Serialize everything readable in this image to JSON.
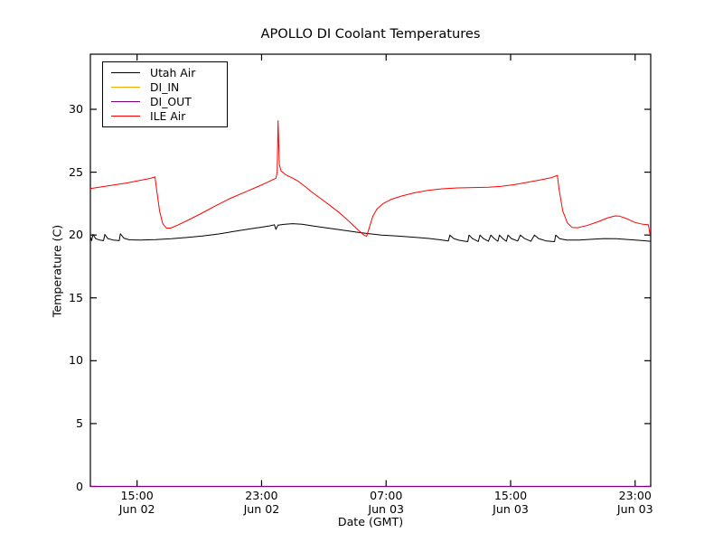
{
  "chart_data": {
    "type": "line",
    "title": "APOLLO DI Coolant Temperatures",
    "xlabel": "Date (GMT)",
    "ylabel": "Temperature (C)",
    "grid": false,
    "legend_position": "upper left",
    "background_color": "#ffffff",
    "axis_color": "#000000",
    "ylim": [
      0,
      30
    ],
    "yticks": [
      0,
      5,
      10,
      15,
      20,
      25,
      30
    ],
    "x_unit": "hours since Jun 02 12:00 GMT",
    "xlim": [
      0,
      36
    ],
    "xticks": [
      {
        "h": 3,
        "time": "15:00",
        "date": "Jun 02"
      },
      {
        "h": 11,
        "time": "23:00",
        "date": "Jun 02"
      },
      {
        "h": 19,
        "time": "07:00",
        "date": "Jun 03"
      },
      {
        "h": 27,
        "time": "15:00",
        "date": "Jun 03"
      },
      {
        "h": 35,
        "time": "23:00",
        "date": "Jun 03"
      }
    ],
    "series": [
      {
        "name": "Utah Air",
        "color": "#000000",
        "points": [
          [
            0,
            19.85
          ],
          [
            0.08,
            19.55
          ],
          [
            0.17,
            20.05
          ],
          [
            0.35,
            19.7
          ],
          [
            0.6,
            19.6
          ],
          [
            0.85,
            19.55
          ],
          [
            0.93,
            20.05
          ],
          [
            1.12,
            19.72
          ],
          [
            1.45,
            19.6
          ],
          [
            1.85,
            19.55
          ],
          [
            1.93,
            20.1
          ],
          [
            2.15,
            19.75
          ],
          [
            2.5,
            19.62
          ],
          [
            3.2,
            19.6
          ],
          [
            4.2,
            19.63
          ],
          [
            5.2,
            19.7
          ],
          [
            6.2,
            19.8
          ],
          [
            7.2,
            19.92
          ],
          [
            8.2,
            20.08
          ],
          [
            9.2,
            20.28
          ],
          [
            10.2,
            20.48
          ],
          [
            10.9,
            20.6
          ],
          [
            11.5,
            20.72
          ],
          [
            11.82,
            20.82
          ],
          [
            11.92,
            20.45
          ],
          [
            12.05,
            20.78
          ],
          [
            12.5,
            20.85
          ],
          [
            13.0,
            20.9
          ],
          [
            13.6,
            20.85
          ],
          [
            14.3,
            20.72
          ],
          [
            15.1,
            20.58
          ],
          [
            16.0,
            20.42
          ],
          [
            17.0,
            20.25
          ],
          [
            17.8,
            20.12
          ],
          [
            18.7,
            20.0
          ],
          [
            19.7,
            19.92
          ],
          [
            20.7,
            19.83
          ],
          [
            21.7,
            19.73
          ],
          [
            22.5,
            19.62
          ],
          [
            23.0,
            19.52
          ],
          [
            23.1,
            20.0
          ],
          [
            23.35,
            19.72
          ],
          [
            23.7,
            19.58
          ],
          [
            24.1,
            19.5
          ],
          [
            24.25,
            19.47
          ],
          [
            24.33,
            20.0
          ],
          [
            24.55,
            19.72
          ],
          [
            24.92,
            19.48
          ],
          [
            25.03,
            20.0
          ],
          [
            25.25,
            19.72
          ],
          [
            25.58,
            19.5
          ],
          [
            25.73,
            20.0
          ],
          [
            25.95,
            19.72
          ],
          [
            26.18,
            19.5
          ],
          [
            26.28,
            20.0
          ],
          [
            26.5,
            19.72
          ],
          [
            26.73,
            19.5
          ],
          [
            26.83,
            20.0
          ],
          [
            27.05,
            19.72
          ],
          [
            27.45,
            19.52
          ],
          [
            27.63,
            20.0
          ],
          [
            27.9,
            19.72
          ],
          [
            28.3,
            19.5
          ],
          [
            28.53,
            20.0
          ],
          [
            28.8,
            19.72
          ],
          [
            29.3,
            19.52
          ],
          [
            29.82,
            19.47
          ],
          [
            29.9,
            20.0
          ],
          [
            30.15,
            19.7
          ],
          [
            30.6,
            19.6
          ],
          [
            31.4,
            19.6
          ],
          [
            32.2,
            19.66
          ],
          [
            33.0,
            19.72
          ],
          [
            33.8,
            19.7
          ],
          [
            34.6,
            19.63
          ],
          [
            35.4,
            19.56
          ],
          [
            36,
            19.5
          ]
        ]
      },
      {
        "name": "DI_IN",
        "color": "#ffa500",
        "points": [
          [
            0,
            0
          ],
          [
            36,
            0
          ]
        ]
      },
      {
        "name": "DI_OUT",
        "color": "#800080",
        "points": [
          [
            0,
            0
          ],
          [
            36,
            0
          ]
        ]
      },
      {
        "name": "ILE Air",
        "color": "#ff0000",
        "points": [
          [
            0,
            23.7
          ],
          [
            0.8,
            23.85
          ],
          [
            1.6,
            24.0
          ],
          [
            2.4,
            24.15
          ],
          [
            3.2,
            24.35
          ],
          [
            3.85,
            24.5
          ],
          [
            4.15,
            24.62
          ],
          [
            4.28,
            23.4
          ],
          [
            4.45,
            21.9
          ],
          [
            4.65,
            20.9
          ],
          [
            4.88,
            20.55
          ],
          [
            5.15,
            20.55
          ],
          [
            5.6,
            20.78
          ],
          [
            6.3,
            21.2
          ],
          [
            7.1,
            21.7
          ],
          [
            8.0,
            22.3
          ],
          [
            9.0,
            22.92
          ],
          [
            10.0,
            23.45
          ],
          [
            10.7,
            23.82
          ],
          [
            11.3,
            24.15
          ],
          [
            11.72,
            24.4
          ],
          [
            11.92,
            24.52
          ],
          [
            12.0,
            25.0
          ],
          [
            12.06,
            29.1
          ],
          [
            12.14,
            25.6
          ],
          [
            12.25,
            25.1
          ],
          [
            12.55,
            24.8
          ],
          [
            12.95,
            24.55
          ],
          [
            13.35,
            24.28
          ],
          [
            13.75,
            23.9
          ],
          [
            14.25,
            23.4
          ],
          [
            14.85,
            22.85
          ],
          [
            15.45,
            22.3
          ],
          [
            16.05,
            21.72
          ],
          [
            16.65,
            21.05
          ],
          [
            17.15,
            20.45
          ],
          [
            17.55,
            20.02
          ],
          [
            17.75,
            19.9
          ],
          [
            17.95,
            20.7
          ],
          [
            18.15,
            21.5
          ],
          [
            18.4,
            22.05
          ],
          [
            18.8,
            22.5
          ],
          [
            19.3,
            22.82
          ],
          [
            20.0,
            23.1
          ],
          [
            20.8,
            23.35
          ],
          [
            21.7,
            23.55
          ],
          [
            22.6,
            23.68
          ],
          [
            23.6,
            23.75
          ],
          [
            24.6,
            23.78
          ],
          [
            25.6,
            23.8
          ],
          [
            26.4,
            23.87
          ],
          [
            27.2,
            24.0
          ],
          [
            28.1,
            24.2
          ],
          [
            29.0,
            24.4
          ],
          [
            29.6,
            24.55
          ],
          [
            30.0,
            24.75
          ],
          [
            30.12,
            23.6
          ],
          [
            30.35,
            21.9
          ],
          [
            30.65,
            20.95
          ],
          [
            30.95,
            20.6
          ],
          [
            31.3,
            20.58
          ],
          [
            31.9,
            20.75
          ],
          [
            32.6,
            21.05
          ],
          [
            33.2,
            21.35
          ],
          [
            33.7,
            21.52
          ],
          [
            34.0,
            21.5
          ],
          [
            34.5,
            21.28
          ],
          [
            35.0,
            21.0
          ],
          [
            35.5,
            20.85
          ],
          [
            35.85,
            20.82
          ],
          [
            35.95,
            20.1
          ]
        ]
      }
    ]
  }
}
